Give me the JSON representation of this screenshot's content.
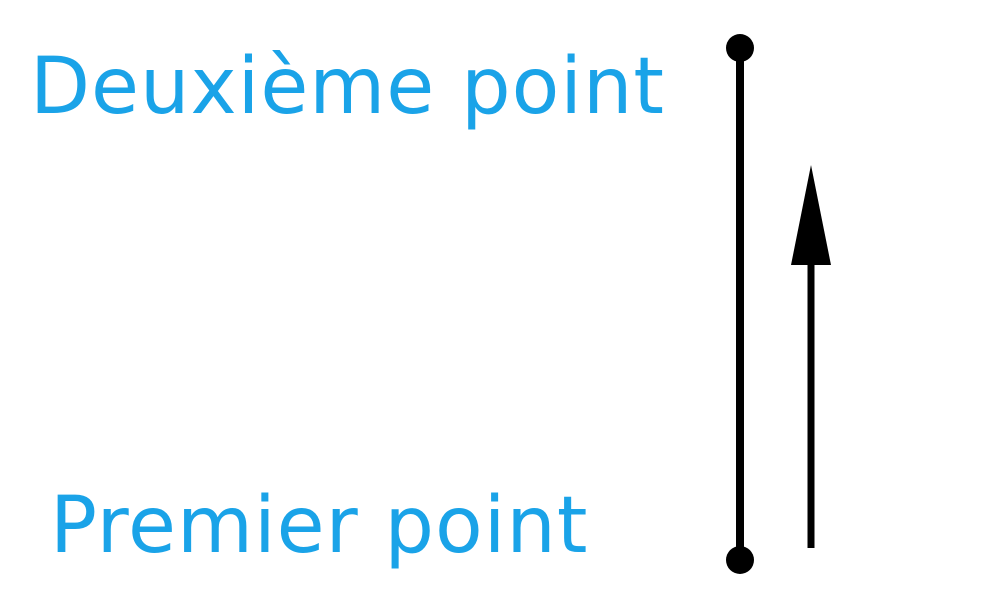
{
  "labels": {
    "second_point": "Deuxième point",
    "first_point": "Premier point"
  },
  "icons": {
    "segment": "vertical-segment",
    "direction": "arrow-up-icon"
  },
  "colors": {
    "label": "#1aa3e8",
    "stroke": "#000000"
  }
}
